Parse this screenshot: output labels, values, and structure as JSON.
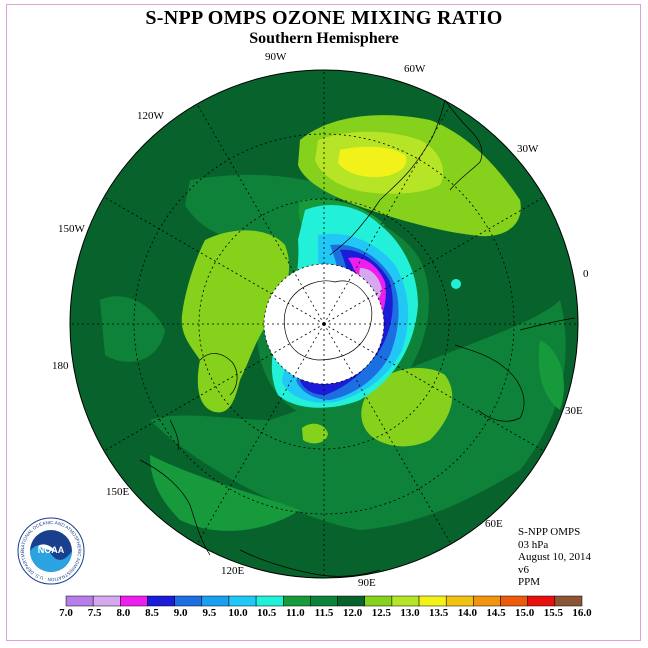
{
  "title": "S-NPP OMPS OZONE MIXING RATIO",
  "subtitle": "Southern Hemisphere",
  "longitude_labels": {
    "lon_90w": "90W",
    "lon_60w": "60W",
    "lon_30w": "30W",
    "lon_0": "0",
    "lon_30e": "30E",
    "lon_60e": "60E",
    "lon_90e": "90E",
    "lon_120e": "120E",
    "lon_150e": "150E",
    "lon_180": "180",
    "lon_150w": "150W",
    "lon_120w": "120W"
  },
  "info": {
    "instrument": "S-NPP OMPS",
    "level": "03 hPa",
    "date": "August 10, 2014",
    "version": "v6",
    "units": "PPM"
  },
  "logo": {
    "text": "NOAA",
    "ring_text": "NATIONAL OCEANIC AND ATMOSPHERIC ADMINISTRATION · U.S. DEPARTMENT OF COMMERCE"
  },
  "colorbar": {
    "ticks": [
      "7.0",
      "7.5",
      "8.0",
      "8.5",
      "9.0",
      "9.5",
      "10.0",
      "10.5",
      "11.0",
      "11.5",
      "12.0",
      "12.5",
      "13.0",
      "13.5",
      "14.0",
      "14.5",
      "15.0",
      "15.5",
      "16.0"
    ],
    "colors": [
      "#b77de8",
      "#d6a8f0",
      "#ee1fee",
      "#1b1bd8",
      "#1c6fe0",
      "#1ba0f0",
      "#22c8f5",
      "#22f0d8",
      "#169a3c",
      "#0e8238",
      "#07632b",
      "#86d11b",
      "#b6e426",
      "#f2f21a",
      "#f0c212",
      "#ef9510",
      "#ec5a0c",
      "#e6100e",
      "#8c5533"
    ]
  },
  "map_colors": {
    "background_field": "#07632b",
    "mid_green": "#0e8238",
    "light_green": "#169a3c",
    "yellow_green": "#86d11b",
    "lime": "#b6e426",
    "yellow": "#f2f21a",
    "cyan": "#22f0d8",
    "light_blue": "#22c8f5",
    "blue": "#1c6fe0",
    "dark_blue": "#1b1bd8",
    "magenta": "#ee1fee",
    "lavender": "#d6a8f0",
    "no_data": "#ffffff"
  }
}
